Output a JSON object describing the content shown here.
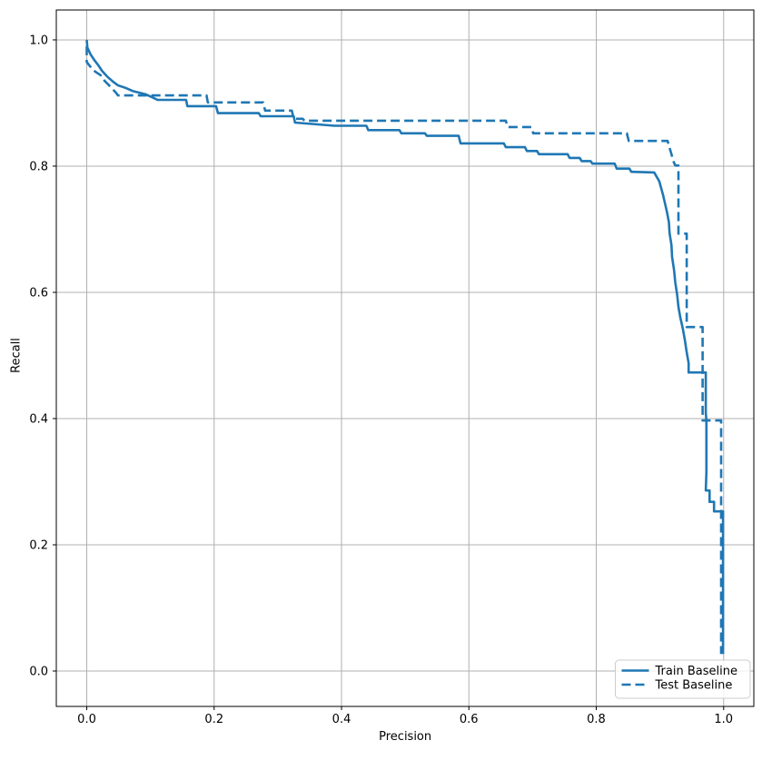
{
  "chart_data": {
    "type": "line",
    "title": "",
    "xlabel": "Precision",
    "ylabel": "Recall",
    "xlim": [
      -0.0478,
      1.0474
    ],
    "ylim": [
      -0.0561,
      1.0474
    ],
    "xtick_values": [
      0.0,
      0.2,
      0.4,
      0.6,
      0.8,
      1.0
    ],
    "xtick_labels": [
      "0.0",
      "0.2",
      "0.4",
      "0.6",
      "0.8",
      "1.0"
    ],
    "ytick_values": [
      0.0,
      0.2,
      0.4,
      0.6,
      0.8,
      1.0
    ],
    "ytick_labels": [
      "0.0",
      "0.2",
      "0.4",
      "0.6",
      "0.8",
      "1.0"
    ],
    "grid": true,
    "grid_color": "#b0b0b0",
    "accent_color": "#1f77b4",
    "legend": {
      "position": "lower right",
      "border_color": "#cccccc",
      "entries": [
        {
          "label": "Train Baseline",
          "style": "solid"
        },
        {
          "label": "Test Baseline",
          "style": "dashed"
        }
      ]
    },
    "series": [
      {
        "name": "Train Baseline",
        "style": "solid",
        "color": "#1f77b4",
        "points": [
          [
            0.0,
            1.0
          ],
          [
            0.001,
            0.988
          ],
          [
            0.006,
            0.977
          ],
          [
            0.012,
            0.968
          ],
          [
            0.018,
            0.96
          ],
          [
            0.024,
            0.951
          ],
          [
            0.032,
            0.942
          ],
          [
            0.041,
            0.934
          ],
          [
            0.049,
            0.928
          ],
          [
            0.061,
            0.924
          ],
          [
            0.072,
            0.919
          ],
          [
            0.092,
            0.914
          ],
          [
            0.103,
            0.909
          ],
          [
            0.111,
            0.905
          ],
          [
            0.156,
            0.905
          ],
          [
            0.158,
            0.895
          ],
          [
            0.203,
            0.895
          ],
          [
            0.206,
            0.884
          ],
          [
            0.27,
            0.884
          ],
          [
            0.273,
            0.879
          ],
          [
            0.325,
            0.879
          ],
          [
            0.327,
            0.869
          ],
          [
            0.389,
            0.864
          ],
          [
            0.439,
            0.864
          ],
          [
            0.442,
            0.857
          ],
          [
            0.491,
            0.857
          ],
          [
            0.494,
            0.852
          ],
          [
            0.531,
            0.852
          ],
          [
            0.534,
            0.848
          ],
          [
            0.584,
            0.848
          ],
          [
            0.587,
            0.836
          ],
          [
            0.655,
            0.836
          ],
          [
            0.658,
            0.83
          ],
          [
            0.688,
            0.83
          ],
          [
            0.691,
            0.824
          ],
          [
            0.707,
            0.824
          ],
          [
            0.71,
            0.819
          ],
          [
            0.755,
            0.819
          ],
          [
            0.758,
            0.813
          ],
          [
            0.774,
            0.813
          ],
          [
            0.777,
            0.808
          ],
          [
            0.791,
            0.808
          ],
          [
            0.794,
            0.804
          ],
          [
            0.829,
            0.804
          ],
          [
            0.832,
            0.796
          ],
          [
            0.852,
            0.796
          ],
          [
            0.855,
            0.791
          ],
          [
            0.891,
            0.79
          ],
          [
            0.895,
            0.783
          ],
          [
            0.899,
            0.776
          ],
          [
            0.902,
            0.765
          ],
          [
            0.905,
            0.754
          ],
          [
            0.908,
            0.741
          ],
          [
            0.911,
            0.727
          ],
          [
            0.914,
            0.711
          ],
          [
            0.915,
            0.694
          ],
          [
            0.918,
            0.675
          ],
          [
            0.919,
            0.656
          ],
          [
            0.922,
            0.636
          ],
          [
            0.924,
            0.616
          ],
          [
            0.927,
            0.596
          ],
          [
            0.929,
            0.577
          ],
          [
            0.932,
            0.56
          ],
          [
            0.936,
            0.542
          ],
          [
            0.939,
            0.525
          ],
          [
            0.942,
            0.505
          ],
          [
            0.945,
            0.488
          ],
          [
            0.945,
            0.473
          ],
          [
            0.972,
            0.473
          ],
          [
            0.972,
            0.409
          ],
          [
            0.973,
            0.397
          ],
          [
            0.973,
            0.315
          ],
          [
            0.972,
            0.286
          ],
          [
            0.978,
            0.286
          ],
          [
            0.978,
            0.268
          ],
          [
            0.985,
            0.268
          ],
          [
            0.985,
            0.253
          ],
          [
            0.999,
            0.253
          ],
          [
            0.999,
            0.027
          ]
        ]
      },
      {
        "name": "Test Baseline",
        "style": "dashed",
        "color": "#1f77b4",
        "points": [
          [
            0.0,
            0.99
          ],
          [
            0.0,
            0.965
          ],
          [
            0.01,
            0.952
          ],
          [
            0.022,
            0.944
          ],
          [
            0.028,
            0.935
          ],
          [
            0.038,
            0.925
          ],
          [
            0.046,
            0.916
          ],
          [
            0.049,
            0.912
          ],
          [
            0.188,
            0.912
          ],
          [
            0.19,
            0.901
          ],
          [
            0.277,
            0.901
          ],
          [
            0.28,
            0.888
          ],
          [
            0.322,
            0.888
          ],
          [
            0.325,
            0.875
          ],
          [
            0.339,
            0.875
          ],
          [
            0.342,
            0.872
          ],
          [
            0.658,
            0.872
          ],
          [
            0.661,
            0.862
          ],
          [
            0.698,
            0.862
          ],
          [
            0.701,
            0.852
          ],
          [
            0.848,
            0.852
          ],
          [
            0.851,
            0.84
          ],
          [
            0.912,
            0.84
          ],
          [
            0.915,
            0.829
          ],
          [
            0.918,
            0.819
          ],
          [
            0.921,
            0.808
          ],
          [
            0.924,
            0.801
          ],
          [
            0.929,
            0.801
          ],
          [
            0.929,
            0.693
          ],
          [
            0.942,
            0.693
          ],
          [
            0.942,
            0.545
          ],
          [
            0.967,
            0.545
          ],
          [
            0.967,
            0.397
          ],
          [
            0.996,
            0.397
          ],
          [
            0.996,
            0.027
          ]
        ]
      }
    ]
  }
}
